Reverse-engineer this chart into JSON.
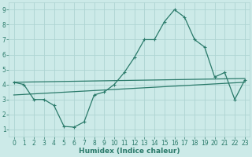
{
  "xlabel": "Humidex (Indice chaleur)",
  "bg_color": "#cceae8",
  "grid_color": "#aed4d2",
  "line_color": "#2a7a6a",
  "xlim": [
    -0.5,
    23.5
  ],
  "ylim": [
    0.5,
    9.5
  ],
  "xticks": [
    0,
    1,
    2,
    3,
    4,
    5,
    6,
    7,
    8,
    9,
    10,
    11,
    12,
    13,
    14,
    15,
    16,
    17,
    18,
    19,
    20,
    21,
    22,
    23
  ],
  "yticks": [
    1,
    2,
    3,
    4,
    5,
    6,
    7,
    8,
    9
  ],
  "line1_x": [
    0,
    1,
    2,
    3,
    4,
    5,
    6,
    7,
    8,
    9,
    10,
    11,
    12,
    13,
    14,
    15,
    16,
    17,
    18,
    19,
    20,
    21,
    22,
    23
  ],
  "line1_y": [
    4.15,
    4.0,
    3.0,
    3.0,
    2.6,
    1.2,
    1.15,
    1.5,
    3.3,
    3.5,
    4.0,
    4.8,
    5.8,
    7.0,
    7.0,
    8.2,
    9.0,
    8.5,
    7.0,
    6.5,
    4.5,
    4.8,
    3.0,
    4.3
  ],
  "line2_x": [
    0,
    23
  ],
  "line2_y": [
    4.15,
    4.4
  ],
  "line3_x": [
    0,
    23
  ],
  "line3_y": [
    3.3,
    4.15
  ],
  "tick_fontsize": 5.5,
  "xlabel_fontsize": 6.5,
  "marker_size": 2.5,
  "linewidth": 0.9
}
